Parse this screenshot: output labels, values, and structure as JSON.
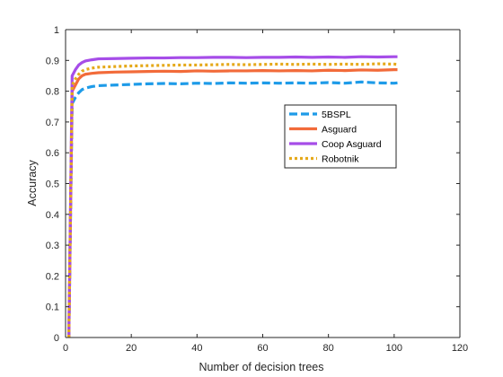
{
  "chart_data": {
    "type": "line",
    "title": "",
    "xlabel": "Number of decision trees",
    "ylabel": "Accuracy",
    "xlim": [
      0,
      120
    ],
    "ylim": [
      0,
      1
    ],
    "xticks": [
      0,
      20,
      40,
      60,
      80,
      100,
      120
    ],
    "yticks": [
      0,
      0.1,
      0.2,
      0.3,
      0.4,
      0.5,
      0.6,
      0.7,
      0.8,
      0.9,
      1
    ],
    "xtick_labels": [
      "0",
      "20",
      "40",
      "60",
      "80",
      "100",
      "120"
    ],
    "ytick_labels": [
      "0",
      "0.1",
      "0.2",
      "0.3",
      "0.4",
      "0.5",
      "0.6",
      "0.7",
      "0.8",
      "0.9",
      "1"
    ],
    "grid": false,
    "legend_position": "right-center",
    "x": [
      1,
      2,
      3,
      4,
      5,
      6,
      8,
      10,
      15,
      20,
      25,
      30,
      35,
      40,
      45,
      50,
      55,
      60,
      65,
      70,
      75,
      80,
      85,
      90,
      95,
      100,
      101
    ],
    "series": [
      {
        "name": "5BSPL",
        "color": "#1e9be8",
        "dash": "dash",
        "values": [
          0.0,
          0.76,
          0.78,
          0.795,
          0.805,
          0.81,
          0.815,
          0.818,
          0.82,
          0.822,
          0.824,
          0.825,
          0.824,
          0.826,
          0.825,
          0.827,
          0.826,
          0.827,
          0.826,
          0.827,
          0.826,
          0.828,
          0.826,
          0.83,
          0.827,
          0.826,
          0.827
        ]
      },
      {
        "name": "Asguard",
        "color": "#f26b3a",
        "dash": "solid",
        "values": [
          0.0,
          0.8,
          0.82,
          0.84,
          0.85,
          0.855,
          0.858,
          0.86,
          0.862,
          0.863,
          0.864,
          0.865,
          0.864,
          0.866,
          0.865,
          0.866,
          0.866,
          0.867,
          0.866,
          0.867,
          0.866,
          0.868,
          0.867,
          0.869,
          0.868,
          0.87,
          0.87
        ]
      },
      {
        "name": "Coop Asguard",
        "color": "#a64de8",
        "dash": "solid",
        "values": [
          0.0,
          0.85,
          0.87,
          0.885,
          0.893,
          0.898,
          0.902,
          0.905,
          0.906,
          0.907,
          0.908,
          0.908,
          0.909,
          0.909,
          0.91,
          0.91,
          0.909,
          0.91,
          0.91,
          0.911,
          0.91,
          0.911,
          0.91,
          0.912,
          0.911,
          0.912,
          0.912
        ]
      },
      {
        "name": "Robotnik",
        "color": "#e5a91b",
        "dash": "dot",
        "values": [
          0.0,
          0.82,
          0.84,
          0.855,
          0.865,
          0.87,
          0.875,
          0.878,
          0.88,
          0.882,
          0.883,
          0.884,
          0.885,
          0.885,
          0.886,
          0.887,
          0.886,
          0.887,
          0.888,
          0.887,
          0.888,
          0.887,
          0.888,
          0.887,
          0.889,
          0.888,
          0.887
        ]
      }
    ]
  }
}
